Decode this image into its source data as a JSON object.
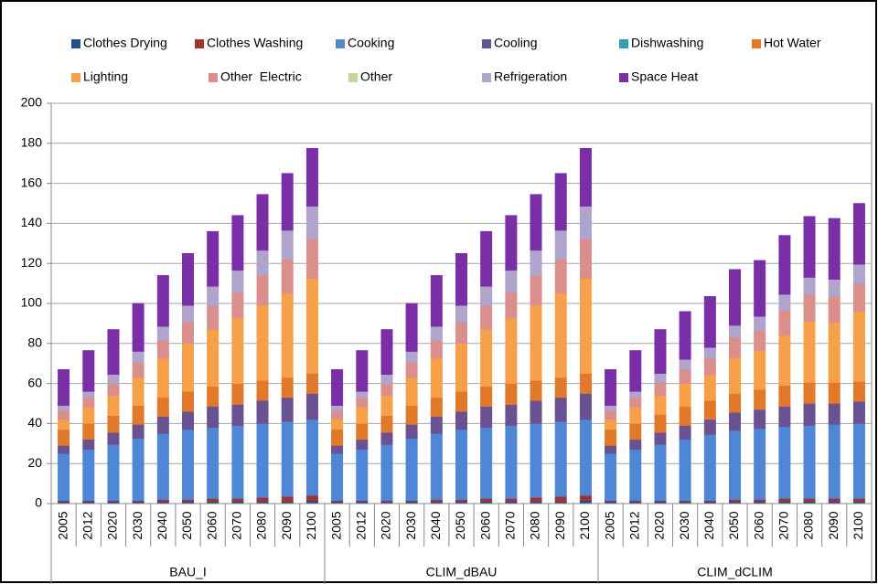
{
  "chart_data": {
    "type": "stacked-bar",
    "categories": [
      "2005",
      "2012",
      "2020",
      "2030",
      "2040",
      "2050",
      "2060",
      "2070",
      "2080",
      "2090",
      "2100",
      "2005",
      "2012",
      "2020",
      "2030",
      "2040",
      "2050",
      "2060",
      "2070",
      "2080",
      "2090",
      "2100",
      "2005",
      "2012",
      "2020",
      "2030",
      "2040",
      "2050",
      "2060",
      "2070",
      "2080",
      "2090",
      "2100"
    ],
    "groups": [
      "BAU_I",
      "CLIM_dBAU",
      "CLIM_dCLIM"
    ],
    "ylim": [
      0,
      200
    ],
    "yticks": [
      0,
      20,
      40,
      60,
      80,
      100,
      120,
      140,
      160,
      180,
      200
    ],
    "grid": true,
    "legend": "top",
    "series": [
      {
        "name": "Clothes Drying",
        "color": "#254f8c",
        "values": [
          1,
          1,
          1,
          1,
          1,
          1,
          1,
          1,
          1,
          1,
          1.5,
          1,
          1,
          1,
          1,
          1,
          1,
          1,
          1,
          1,
          1,
          1.5,
          1,
          1,
          1,
          1,
          1,
          1,
          1,
          1,
          1,
          1,
          1
        ]
      },
      {
        "name": "Clothes Washing",
        "color": "#a0352f",
        "values": [
          0.5,
          0.5,
          0.5,
          0.5,
          1,
          1,
          1.5,
          1.5,
          2,
          2.5,
          2.5,
          0.5,
          0.5,
          0.5,
          0.5,
          1,
          1,
          1.5,
          1.5,
          2,
          2.5,
          2.5,
          0.5,
          0.5,
          0.5,
          0.5,
          0.5,
          1,
          1,
          1.5,
          1.5,
          1.5,
          1.5
        ]
      },
      {
        "name": "Cooking",
        "color": "#4f86d6",
        "values": [
          23.5,
          25.5,
          28,
          31,
          33,
          35,
          35.5,
          36.5,
          37,
          37.5,
          38,
          23.5,
          25.5,
          28,
          31,
          33,
          35,
          35.5,
          36.5,
          37,
          37.5,
          38,
          23.5,
          25.5,
          28,
          30.5,
          33,
          34.5,
          35.5,
          36,
          36.5,
          37,
          37.5
        ]
      },
      {
        "name": "Cooling",
        "color": "#6a5191",
        "values": [
          4,
          5,
          6,
          7,
          8.5,
          9,
          10.5,
          10.5,
          11.5,
          12,
          13,
          4,
          5,
          6,
          7,
          8.5,
          9,
          10.5,
          10.5,
          11.5,
          12,
          13,
          4,
          5,
          6,
          7,
          7.5,
          9,
          9.5,
          10,
          11,
          10.5,
          11
        ]
      },
      {
        "name": "Dishwashing",
        "color": "#31a0b4",
        "values": [
          0,
          0,
          0,
          0,
          0,
          0,
          0,
          0,
          0,
          0,
          0,
          0,
          0,
          0,
          0,
          0,
          0,
          0,
          0,
          0,
          0,
          0,
          0,
          0,
          0,
          0,
          0,
          0,
          0,
          0,
          0,
          0,
          0
        ]
      },
      {
        "name": "Hot Water",
        "color": "#e2782a",
        "values": [
          8,
          8,
          8.5,
          9.5,
          9.5,
          10,
          10,
          10.5,
          10,
          10,
          10,
          8,
          8,
          8.5,
          9.5,
          9.5,
          10,
          10,
          10.5,
          10,
          10,
          10,
          8,
          8,
          9,
          9.5,
          9.5,
          9.5,
          10,
          10.5,
          10.5,
          10.5,
          10
        ]
      },
      {
        "name": "Lighting",
        "color": "#f7a04a",
        "values": [
          5,
          8,
          10,
          14,
          19.5,
          24,
          28.5,
          32.5,
          37.5,
          42,
          47.5,
          5,
          8,
          10,
          14,
          19.5,
          24,
          28.5,
          32.5,
          37.5,
          42,
          47.5,
          5,
          8,
          9.5,
          11.5,
          13,
          18,
          19.5,
          25,
          30.5,
          30,
          35
        ]
      },
      {
        "name": "Other  Electric",
        "color": "#db8f8c",
        "values": [
          4.5,
          5,
          6,
          7.5,
          9,
          10.5,
          12,
          13,
          15,
          17,
          19.5,
          4.5,
          5,
          6,
          7.5,
          9,
          10.5,
          12,
          13,
          15,
          17,
          19.5,
          4.5,
          5,
          6.5,
          7,
          8,
          10,
          10,
          12.5,
          13.5,
          13,
          14
        ]
      },
      {
        "name": "Other",
        "color": "#c3d69b",
        "values": [
          0,
          0,
          0,
          0,
          0,
          0,
          0,
          0,
          0,
          0,
          0,
          0,
          0,
          0,
          0,
          0,
          0,
          0,
          0,
          0,
          0,
          0,
          0,
          0,
          0,
          0,
          0,
          0,
          0,
          0,
          0,
          0,
          0
        ]
      },
      {
        "name": "Refrigeration",
        "color": "#b0a3cc",
        "values": [
          2.5,
          3,
          4.5,
          5.5,
          7,
          8.5,
          9.5,
          11,
          12.5,
          14.5,
          16.5,
          2.5,
          3,
          4.5,
          5.5,
          7,
          8.5,
          9.5,
          11,
          12.5,
          14.5,
          16.5,
          2.5,
          3,
          4.5,
          5,
          5.5,
          6,
          7,
          8,
          8.5,
          8.5,
          9.5
        ]
      },
      {
        "name": "Space Heat",
        "color": "#7a2fa6",
        "values": [
          18,
          20.5,
          22.5,
          24,
          25.5,
          26,
          27.5,
          27.5,
          28,
          28.5,
          29,
          18,
          20.5,
          22.5,
          24,
          25.5,
          26,
          27.5,
          27.5,
          28,
          28.5,
          29,
          18,
          20.5,
          22,
          24,
          25.5,
          28,
          28,
          29.5,
          30.5,
          30.5,
          30.5
        ]
      }
    ]
  }
}
